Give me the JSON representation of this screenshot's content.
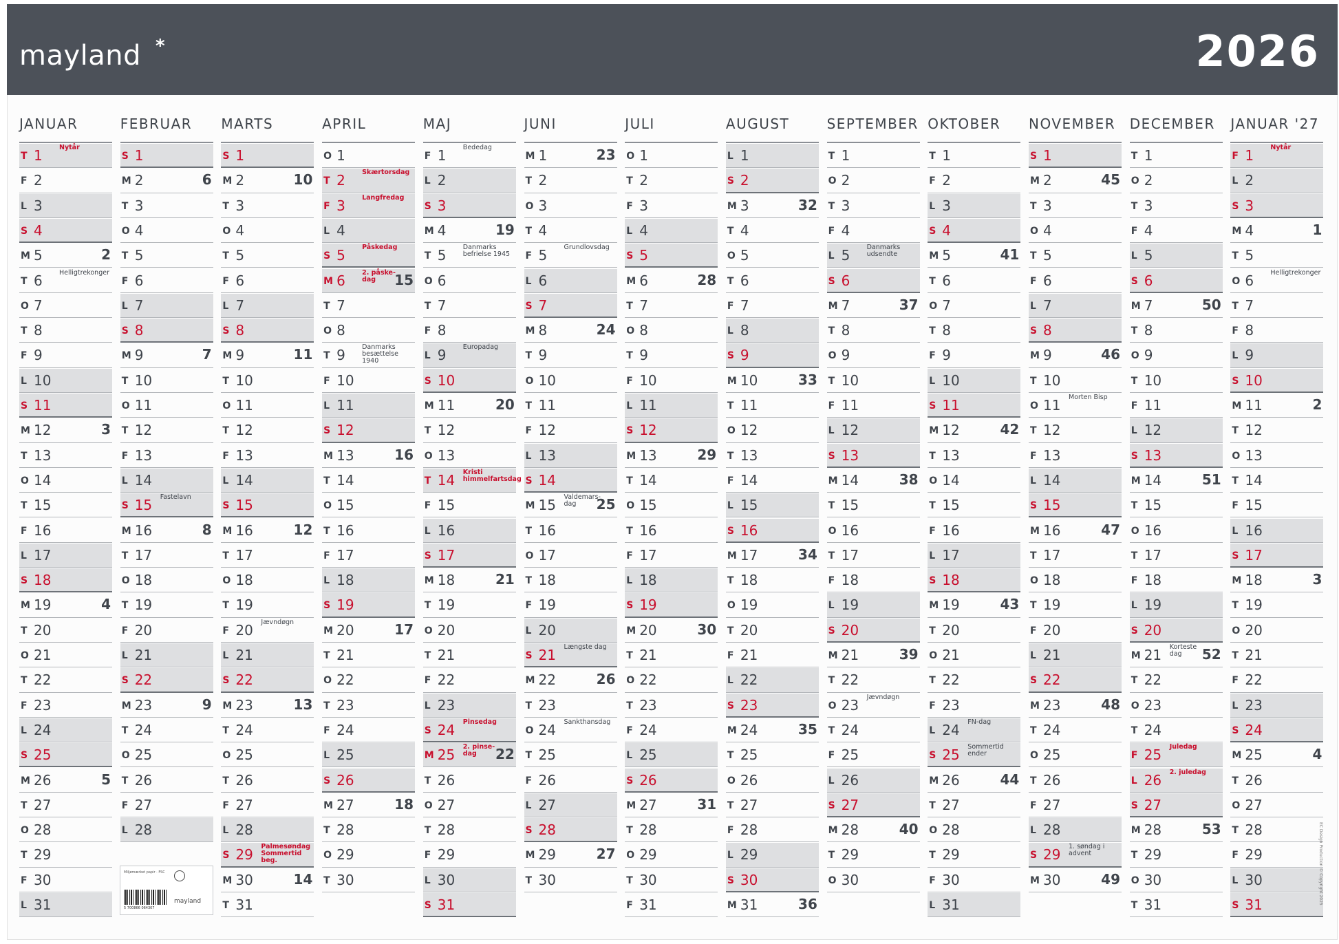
{
  "brand": "mayland",
  "brand_star": "*",
  "year": "2026",
  "eco_label": {
    "text": "Miljømærket papir · FSC",
    "barcode": "5 700866 064307",
    "brand": "mayland"
  },
  "side_note": "EC Design Production © Copyright 2025",
  "colors": {
    "header": "#4c5159",
    "red": "#c8102e",
    "weekend_fill": "#dedfe1"
  },
  "months": [
    {
      "name": "JANUAR",
      "first_weekday": 3,
      "days": 31,
      "weeks": {
        "5": "2",
        "12": "3",
        "19": "4",
        "26": "5"
      },
      "holidays": [
        1
      ],
      "notes": {
        "1": {
          "text": "Nytår",
          "red": true
        },
        "6": {
          "text": "Helligtrekonger",
          "red": false
        }
      }
    },
    {
      "name": "FEBRUAR",
      "first_weekday": 6,
      "days": 28,
      "weeks": {
        "2": "6",
        "9": "7",
        "16": "8",
        "23": "9"
      },
      "holidays": [],
      "notes": {
        "15": {
          "text": "Fastelavn",
          "red": false
        }
      }
    },
    {
      "name": "MARTS",
      "first_weekday": 6,
      "days": 31,
      "weeks": {
        "2": "10",
        "9": "11",
        "16": "12",
        "23": "13",
        "30": "14"
      },
      "holidays": [
        29
      ],
      "notes": {
        "20": {
          "text": "Jævndøgn",
          "red": false
        },
        "29": {
          "text": "Palmesøndag\nSommertid beg.",
          "red": true
        }
      }
    },
    {
      "name": "APRIL",
      "first_weekday": 2,
      "days": 30,
      "weeks": {
        "6": "15",
        "13": "16",
        "20": "17",
        "27": "18"
      },
      "holidays": [
        2,
        3,
        5,
        6
      ],
      "notes": {
        "2": {
          "text": "Skærtorsdag",
          "red": true
        },
        "3": {
          "text": "Langfredag",
          "red": true
        },
        "5": {
          "text": "Påskedag",
          "red": true
        },
        "6": {
          "text": "2. påske-\ndag",
          "red": true
        },
        "9": {
          "text": "Danmarks\nbesættelse 1940",
          "red": false
        }
      }
    },
    {
      "name": "MAJ",
      "first_weekday": 4,
      "days": 31,
      "weeks": {
        "4": "19",
        "11": "20",
        "18": "21",
        "25": "22"
      },
      "holidays": [
        14,
        24,
        25
      ],
      "notes": {
        "1": {
          "text": "Bededag",
          "red": false
        },
        "5": {
          "text": "Danmarks\nbefrielse 1945",
          "red": false
        },
        "9": {
          "text": "Europadag",
          "red": false
        },
        "14": {
          "text": "Kristi\nhimmelfartsdag",
          "red": true
        },
        "24": {
          "text": "Pinsedag",
          "red": true
        },
        "25": {
          "text": "2. pinse-\ndag",
          "red": true
        }
      }
    },
    {
      "name": "JUNI",
      "first_weekday": 0,
      "days": 30,
      "weeks": {
        "1": "23",
        "8": "24",
        "15": "25",
        "22": "26",
        "29": "27"
      },
      "holidays": [],
      "notes": {
        "5": {
          "text": "Grundlovsdag",
          "red": false
        },
        "15": {
          "text": "Valdemars-\ndag",
          "red": false
        },
        "21": {
          "text": "Længste dag",
          "red": false
        },
        "24": {
          "text": "Sankthansdag",
          "red": false
        }
      }
    },
    {
      "name": "JULI",
      "first_weekday": 2,
      "days": 31,
      "weeks": {
        "6": "28",
        "13": "29",
        "20": "30",
        "27": "31"
      },
      "holidays": [],
      "notes": {}
    },
    {
      "name": "AUGUST",
      "first_weekday": 5,
      "days": 31,
      "weeks": {
        "3": "32",
        "10": "33",
        "17": "34",
        "24": "35",
        "31": "36"
      },
      "holidays": [],
      "notes": {}
    },
    {
      "name": "SEPTEMBER",
      "first_weekday": 1,
      "days": 30,
      "weeks": {
        "7": "37",
        "14": "38",
        "21": "39",
        "28": "40"
      },
      "holidays": [],
      "notes": {
        "5": {
          "text": "Danmarks\nudsendte",
          "red": false
        },
        "23": {
          "text": "Jævndøgn",
          "red": false
        }
      }
    },
    {
      "name": "OKTOBER",
      "first_weekday": 3,
      "days": 31,
      "weeks": {
        "5": "41",
        "12": "42",
        "19": "43",
        "26": "44"
      },
      "holidays": [],
      "notes": {
        "24": {
          "text": "FN-dag",
          "red": false
        },
        "25": {
          "text": "Sommertid\nender",
          "red": false
        }
      }
    },
    {
      "name": "NOVEMBER",
      "first_weekday": 6,
      "days": 30,
      "weeks": {
        "2": "45",
        "9": "46",
        "16": "47",
        "23": "48",
        "30": "49"
      },
      "holidays": [],
      "notes": {
        "11": {
          "text": "Morten Bisp",
          "red": false
        },
        "29": {
          "text": "1. søndag i\nadvent",
          "red": false
        }
      }
    },
    {
      "name": "DECEMBER",
      "first_weekday": 1,
      "days": 31,
      "weeks": {
        "7": "50",
        "14": "51",
        "21": "52",
        "28": "53"
      },
      "holidays": [
        25,
        26
      ],
      "notes": {
        "21": {
          "text": "Korteste\ndag",
          "red": false
        },
        "25": {
          "text": "Juledag",
          "red": true
        },
        "26": {
          "text": "2. juledag",
          "red": true
        }
      }
    },
    {
      "name": "JANUAR '27",
      "first_weekday": 4,
      "days": 31,
      "weeks": {
        "4": "1",
        "11": "2",
        "18": "3",
        "25": "4"
      },
      "holidays": [
        1
      ],
      "notes": {
        "1": {
          "text": "Nytår",
          "red": true
        },
        "6": {
          "text": "Helligtrekonger",
          "red": false
        }
      }
    }
  ],
  "weekday_letters": [
    "M",
    "T",
    "O",
    "T",
    "F",
    "L",
    "S"
  ]
}
